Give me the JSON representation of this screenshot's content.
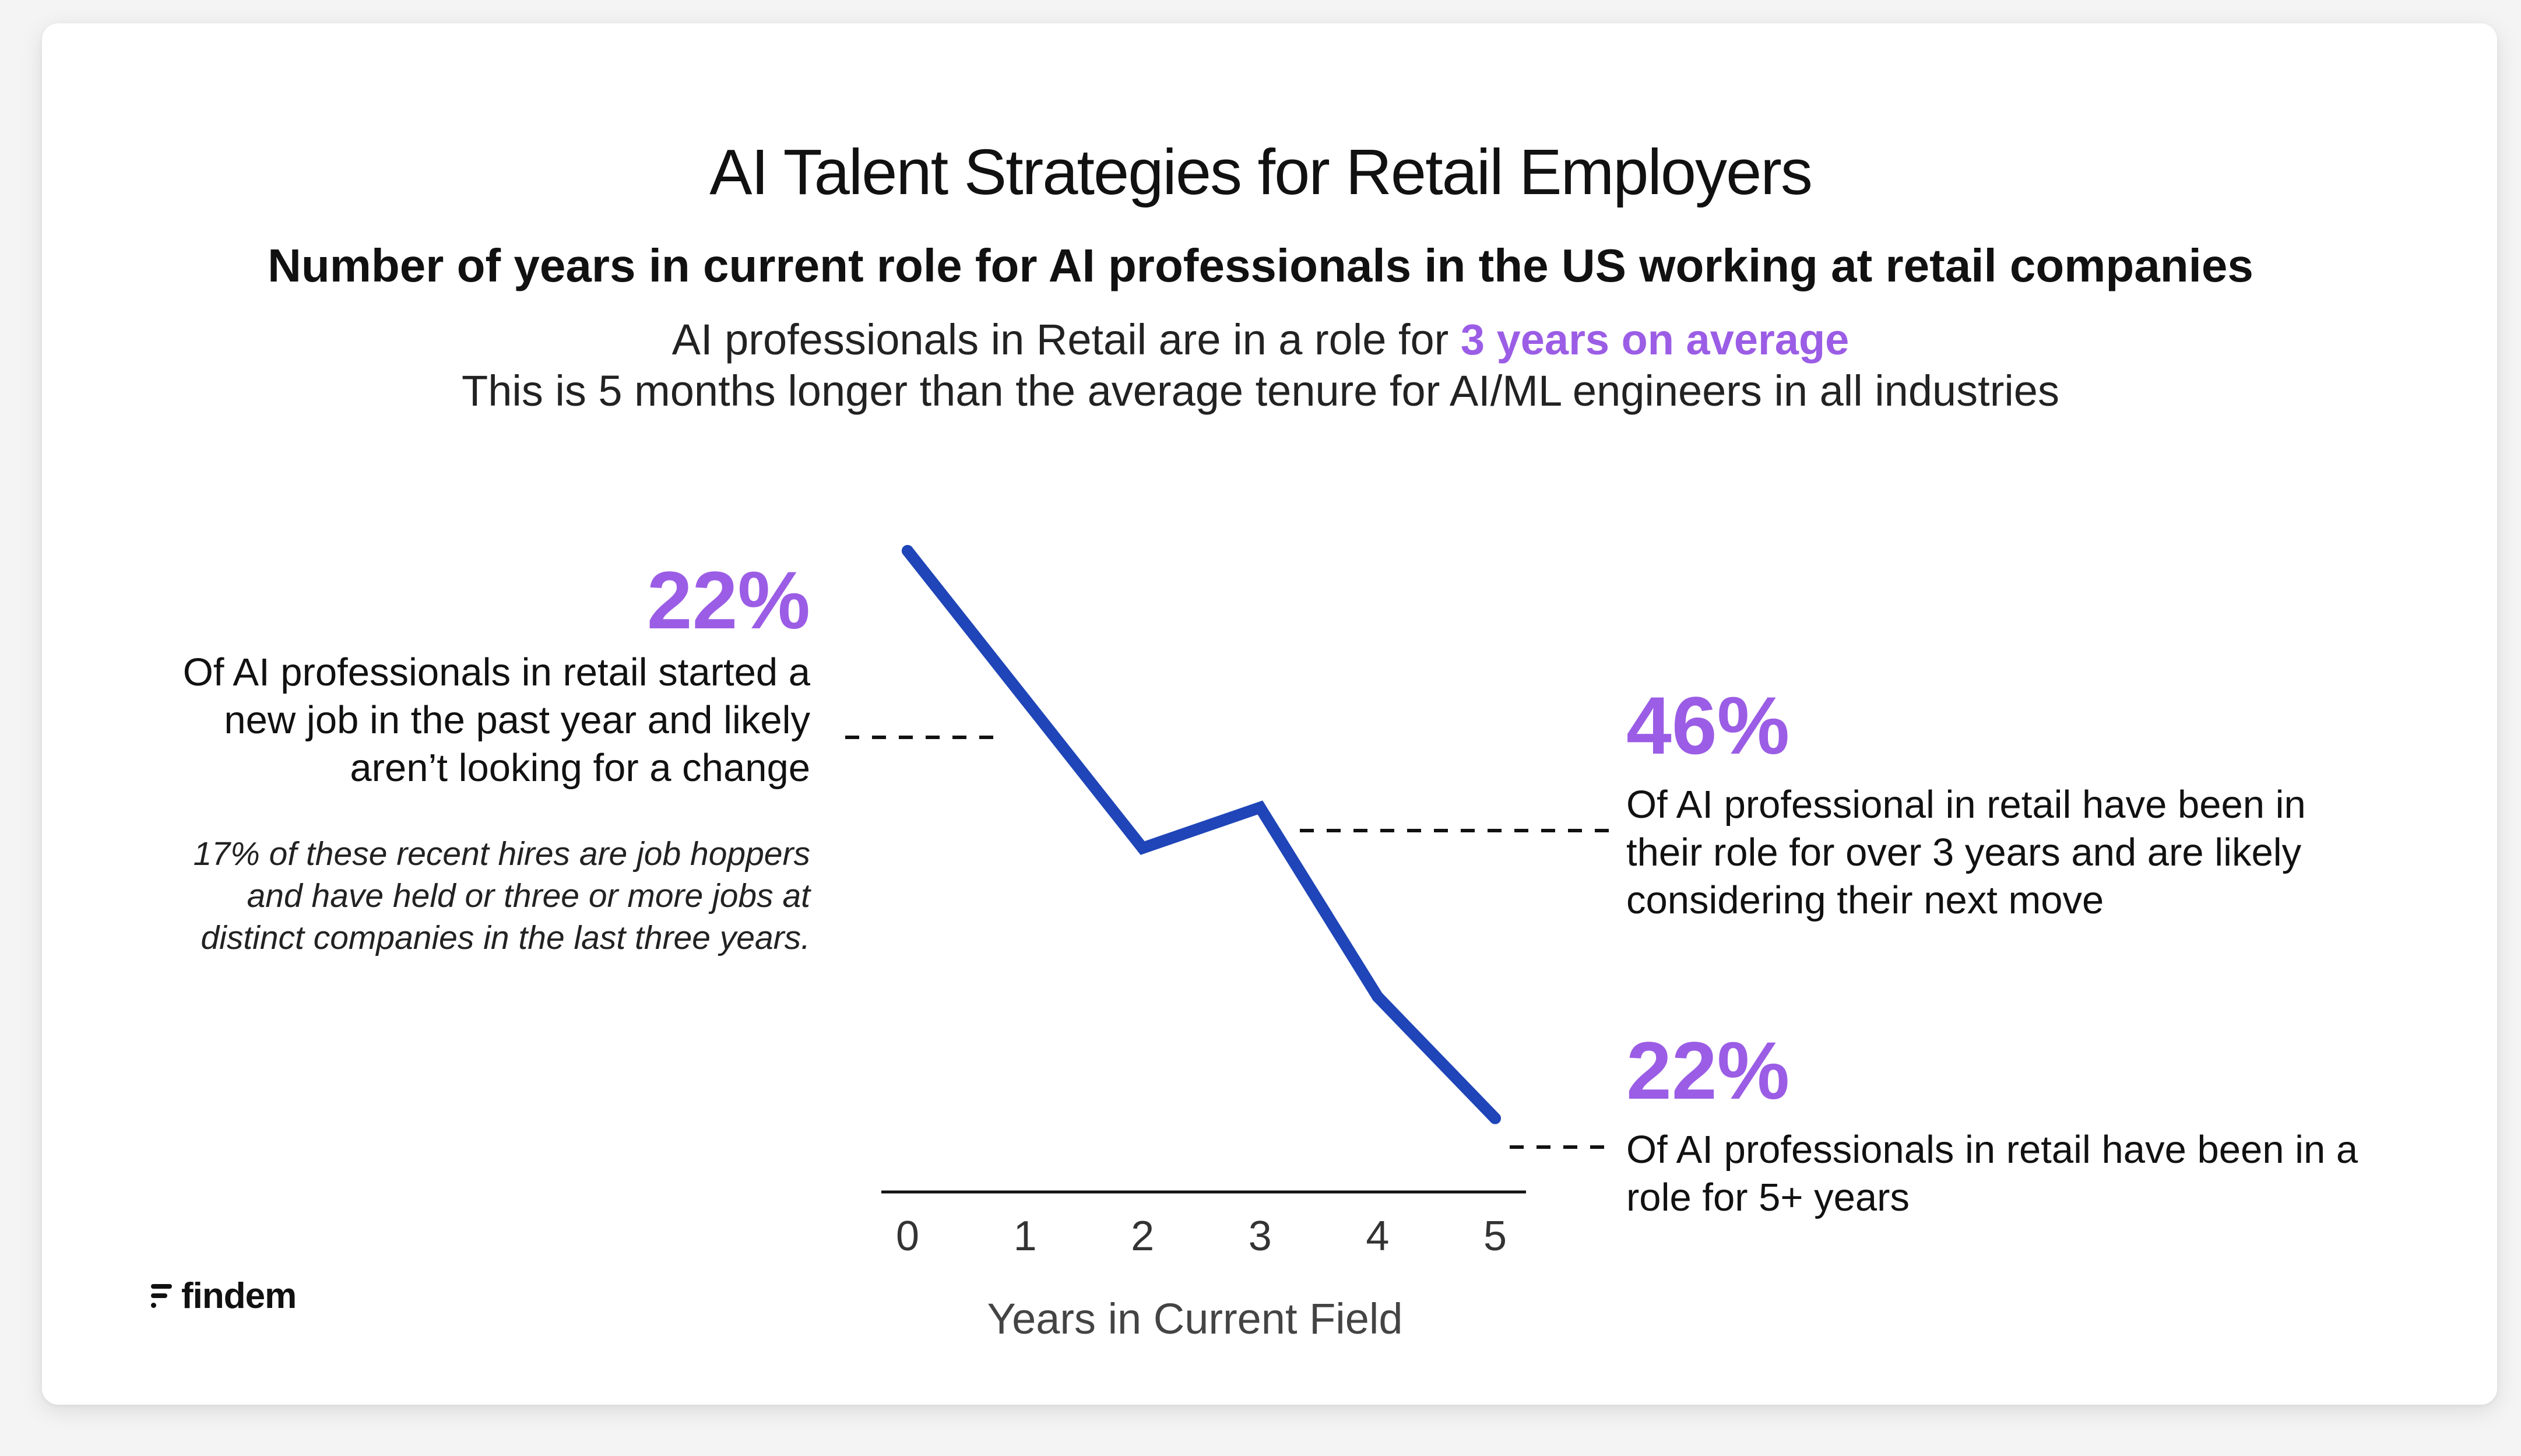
{
  "title": "AI Talent Strategies for Retail Employers",
  "subtitle": "Number of years in current role for AI professionals in the US working at retail companies",
  "summary": {
    "line1_prefix": "AI professionals in Retail are in a role for ",
    "line1_highlight": "3 years on average",
    "line2": "This is 5 months longer than the average tenure for AI/ML engineers in all industries"
  },
  "callouts": {
    "left": {
      "value": "22%",
      "text": "Of AI professionals in retail started a new job in the past year and likely aren’t looking for a change",
      "note": "17% of these recent hires are job hoppers and have held or three or more jobs at distinct companies in the last three years."
    },
    "right_top": {
      "value": "46%",
      "text": "Of AI professional in retail have been in their role for over 3 years and are likely considering their next move"
    },
    "right_bottom": {
      "value": "22%",
      "text": "Of AI professionals in retail have been in a role for 5+ years"
    }
  },
  "chart_data": {
    "type": "line",
    "x": [
      0,
      1,
      2,
      3,
      4,
      5
    ],
    "tick_labels": [
      "0",
      "1",
      "2",
      "3",
      "4",
      "5"
    ],
    "values": [
      22,
      16.5,
      11,
      12.5,
      5.5,
      1
    ],
    "xlabel": "Years in Current Field",
    "ylabel": "",
    "ylim": [
      0,
      23
    ],
    "line_color": "#1f45b8",
    "accent_color": "#9b5de5",
    "grid": false
  },
  "brand": {
    "name": "findem"
  }
}
